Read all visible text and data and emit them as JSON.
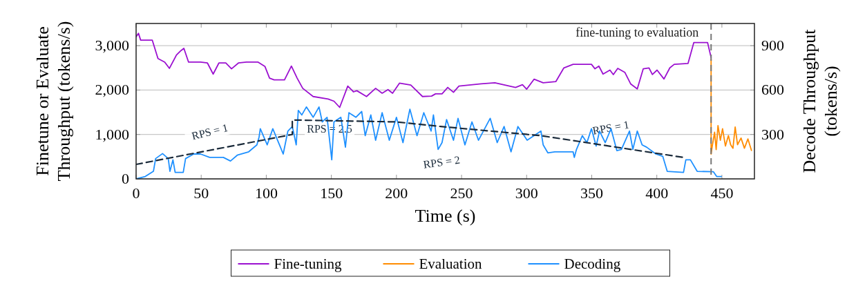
{
  "chart_data": {
    "type": "line",
    "xlabel": "Time (s)",
    "ylabel": "Finetune or Evaluate\nThroughput (tokens/s)",
    "y2label": "Decode Throughput\n(tokens/s)",
    "xlim": [
      0,
      475
    ],
    "xticks": [
      0,
      50,
      100,
      150,
      200,
      250,
      300,
      350,
      400,
      450
    ],
    "ylim": [
      0,
      3500
    ],
    "yticks": [
      0,
      {
        "value": 1000,
        "label": "1,000"
      },
      {
        "value": 2000,
        "label": "2,000"
      },
      {
        "value": 3000,
        "label": "3,000"
      }
    ],
    "y2lim": [
      0,
      1050
    ],
    "y2ticks": [
      300,
      600,
      900
    ],
    "grid": "y",
    "legend": "bottom",
    "series": [
      {
        "name": "Fine-tuning",
        "color": "#9b10d0",
        "x": [
          0,
          1.8,
          3.5,
          12.4,
          16.8,
          22,
          25.6,
          31,
          34.5,
          36.7,
          40.3,
          49.5,
          54.8,
          59.2,
          63.6,
          68.9,
          73.3,
          78.6,
          84.8,
          93.7,
          99,
          102.5,
          106,
          114,
          119.3,
          123.7,
          128,
          136,
          147.5,
          152,
          156.4,
          162.6,
          167,
          169.6,
          177,
          184,
          189,
          193.5,
          197,
          202.3,
          211,
          220,
          227,
          230,
          235,
          239.4,
          243.8,
          248,
          265,
          275.6,
          291.5,
          296.8,
          300,
          305.7,
          312.7,
          322.4,
          328.6,
          335.7,
          349.8,
          352.5,
          355.5,
          358.7,
          364,
          366.6,
          370,
          375.4,
          379.9,
          385,
          389.6,
          394,
          396.6,
          400.2,
          405.5,
          410,
          413.4,
          424,
          428.4,
          439,
          441.7
        ],
        "values": [
          3200,
          3280,
          3125,
          3125,
          2710,
          2630,
          2490,
          2790,
          2890,
          2940,
          2630,
          2630,
          2610,
          2360,
          2610,
          2610,
          2480,
          2610,
          2630,
          2630,
          2530,
          2270,
          2230,
          2230,
          2540,
          2270,
          2040,
          1855,
          1800,
          1750,
          1610,
          2090,
          1960,
          1985,
          1855,
          2040,
          1930,
          2010,
          1930,
          2155,
          2115,
          1855,
          1865,
          1915,
          1915,
          2060,
          1950,
          2090,
          2140,
          2165,
          2060,
          2120,
          2020,
          2245,
          2165,
          2190,
          2500,
          2580,
          2580,
          2480,
          2540,
          2360,
          2450,
          2350,
          2490,
          2400,
          2140,
          2025,
          2480,
          2500,
          2350,
          2450,
          2250,
          2500,
          2580,
          2600,
          3070,
          3070,
          2735
        ]
      },
      {
        "name": "Evaluation",
        "color": "#ff8c00",
        "x": [
          441.7,
          441.7,
          442.6,
          444.4,
          445.6,
          447,
          448.8,
          450.5,
          452.7,
          455,
          456.7,
          458.5,
          460.2,
          462,
          464.7,
          467.3,
          470,
          472.7
        ],
        "values": [
          2700,
          560,
          740,
          1050,
          660,
          1200,
          870,
          1130,
          740,
          975,
          770,
          690,
          1170,
          770,
          920,
          690,
          900,
          640
        ]
      },
      {
        "name": "Decoding",
        "color": "#1e90ff",
        "axis": "y2",
        "x": [
          0,
          7,
          13.3,
          15,
          20.3,
          24.7,
          26,
          28.3,
          30,
          36.2,
          38,
          44.2,
          49.5,
          56.5,
          67,
          72.5,
          77.7,
          86.5,
          92.8,
          94.5,
          95.4,
          100.7,
          105,
          110.5,
          113,
          116.6,
          120,
          123,
          124.6,
          127.3,
          130.8,
          136,
          140.5,
          143,
          146.7,
          150.3,
          152,
          157.3,
          160.8,
          163.5,
          168.8,
          173.3,
          176,
          180.3,
          184,
          189,
          194.5,
          200,
          205,
          210.3,
          215.8,
          221,
          226.6,
          228.4,
          232,
          235,
          238.5,
          243.8,
          247.3,
          252.6,
          258,
          263,
          272,
          277.4,
          282.7,
          288,
          293.3,
          300.4,
          311,
          312.7,
          316.3,
          321.6,
          328.6,
          335.7,
          336.6,
          338.3,
          342.8,
          346.3,
          349.8,
          353.4,
          356,
          360.4,
          364.8,
          369.3,
          372.8,
          379,
          381.6,
          385,
          388.7,
          392.2,
          399.3,
          404.6,
          408,
          420.5,
          422.3,
          425.8,
          431,
          443.5,
          446,
          449.6
        ],
        "values": [
          0,
          16,
          51,
          137,
          171,
          137,
          51,
          129,
          44,
          44,
          137,
          168,
          168,
          145,
          145,
          121,
          160,
          183,
          230,
          284,
          339,
          230,
          339,
          222,
          168,
          323,
          354,
          230,
          463,
          432,
          486,
          416,
          486,
          385,
          416,
          129,
          385,
          416,
          214,
          447,
          416,
          455,
          292,
          432,
          261,
          447,
          261,
          416,
          245,
          471,
          292,
          447,
          323,
          432,
          199,
          245,
          401,
          261,
          409,
          230,
          385,
          261,
          409,
          245,
          354,
          183,
          354,
          261,
          323,
          230,
          176,
          183,
          183,
          183,
          145,
          199,
          292,
          245,
          339,
          222,
          323,
          245,
          339,
          191,
          199,
          323,
          199,
          323,
          230,
          214,
          168,
          152,
          51,
          44,
          129,
          129,
          51,
          48,
          16,
          16
        ]
      },
      {
        "color": "#1a2a3a",
        "axis": "y2",
        "line_style": "dashed",
        "x": [
          0,
          120,
          120,
          200,
          234,
          311,
          420.5
        ],
        "values": [
          98,
          300,
          398,
          385,
          354,
          292,
          145
        ]
      }
    ],
    "ref_lines": [
      {
        "axis": "x",
        "value": 441.7,
        "label": "fine-tuning to evaluation",
        "color": "#777777",
        "line_style": "dashed"
      }
    ],
    "annotations": [
      "RPS = 1",
      "RPS = 2.5",
      "RPS = 2",
      "RPS = 1"
    ]
  }
}
